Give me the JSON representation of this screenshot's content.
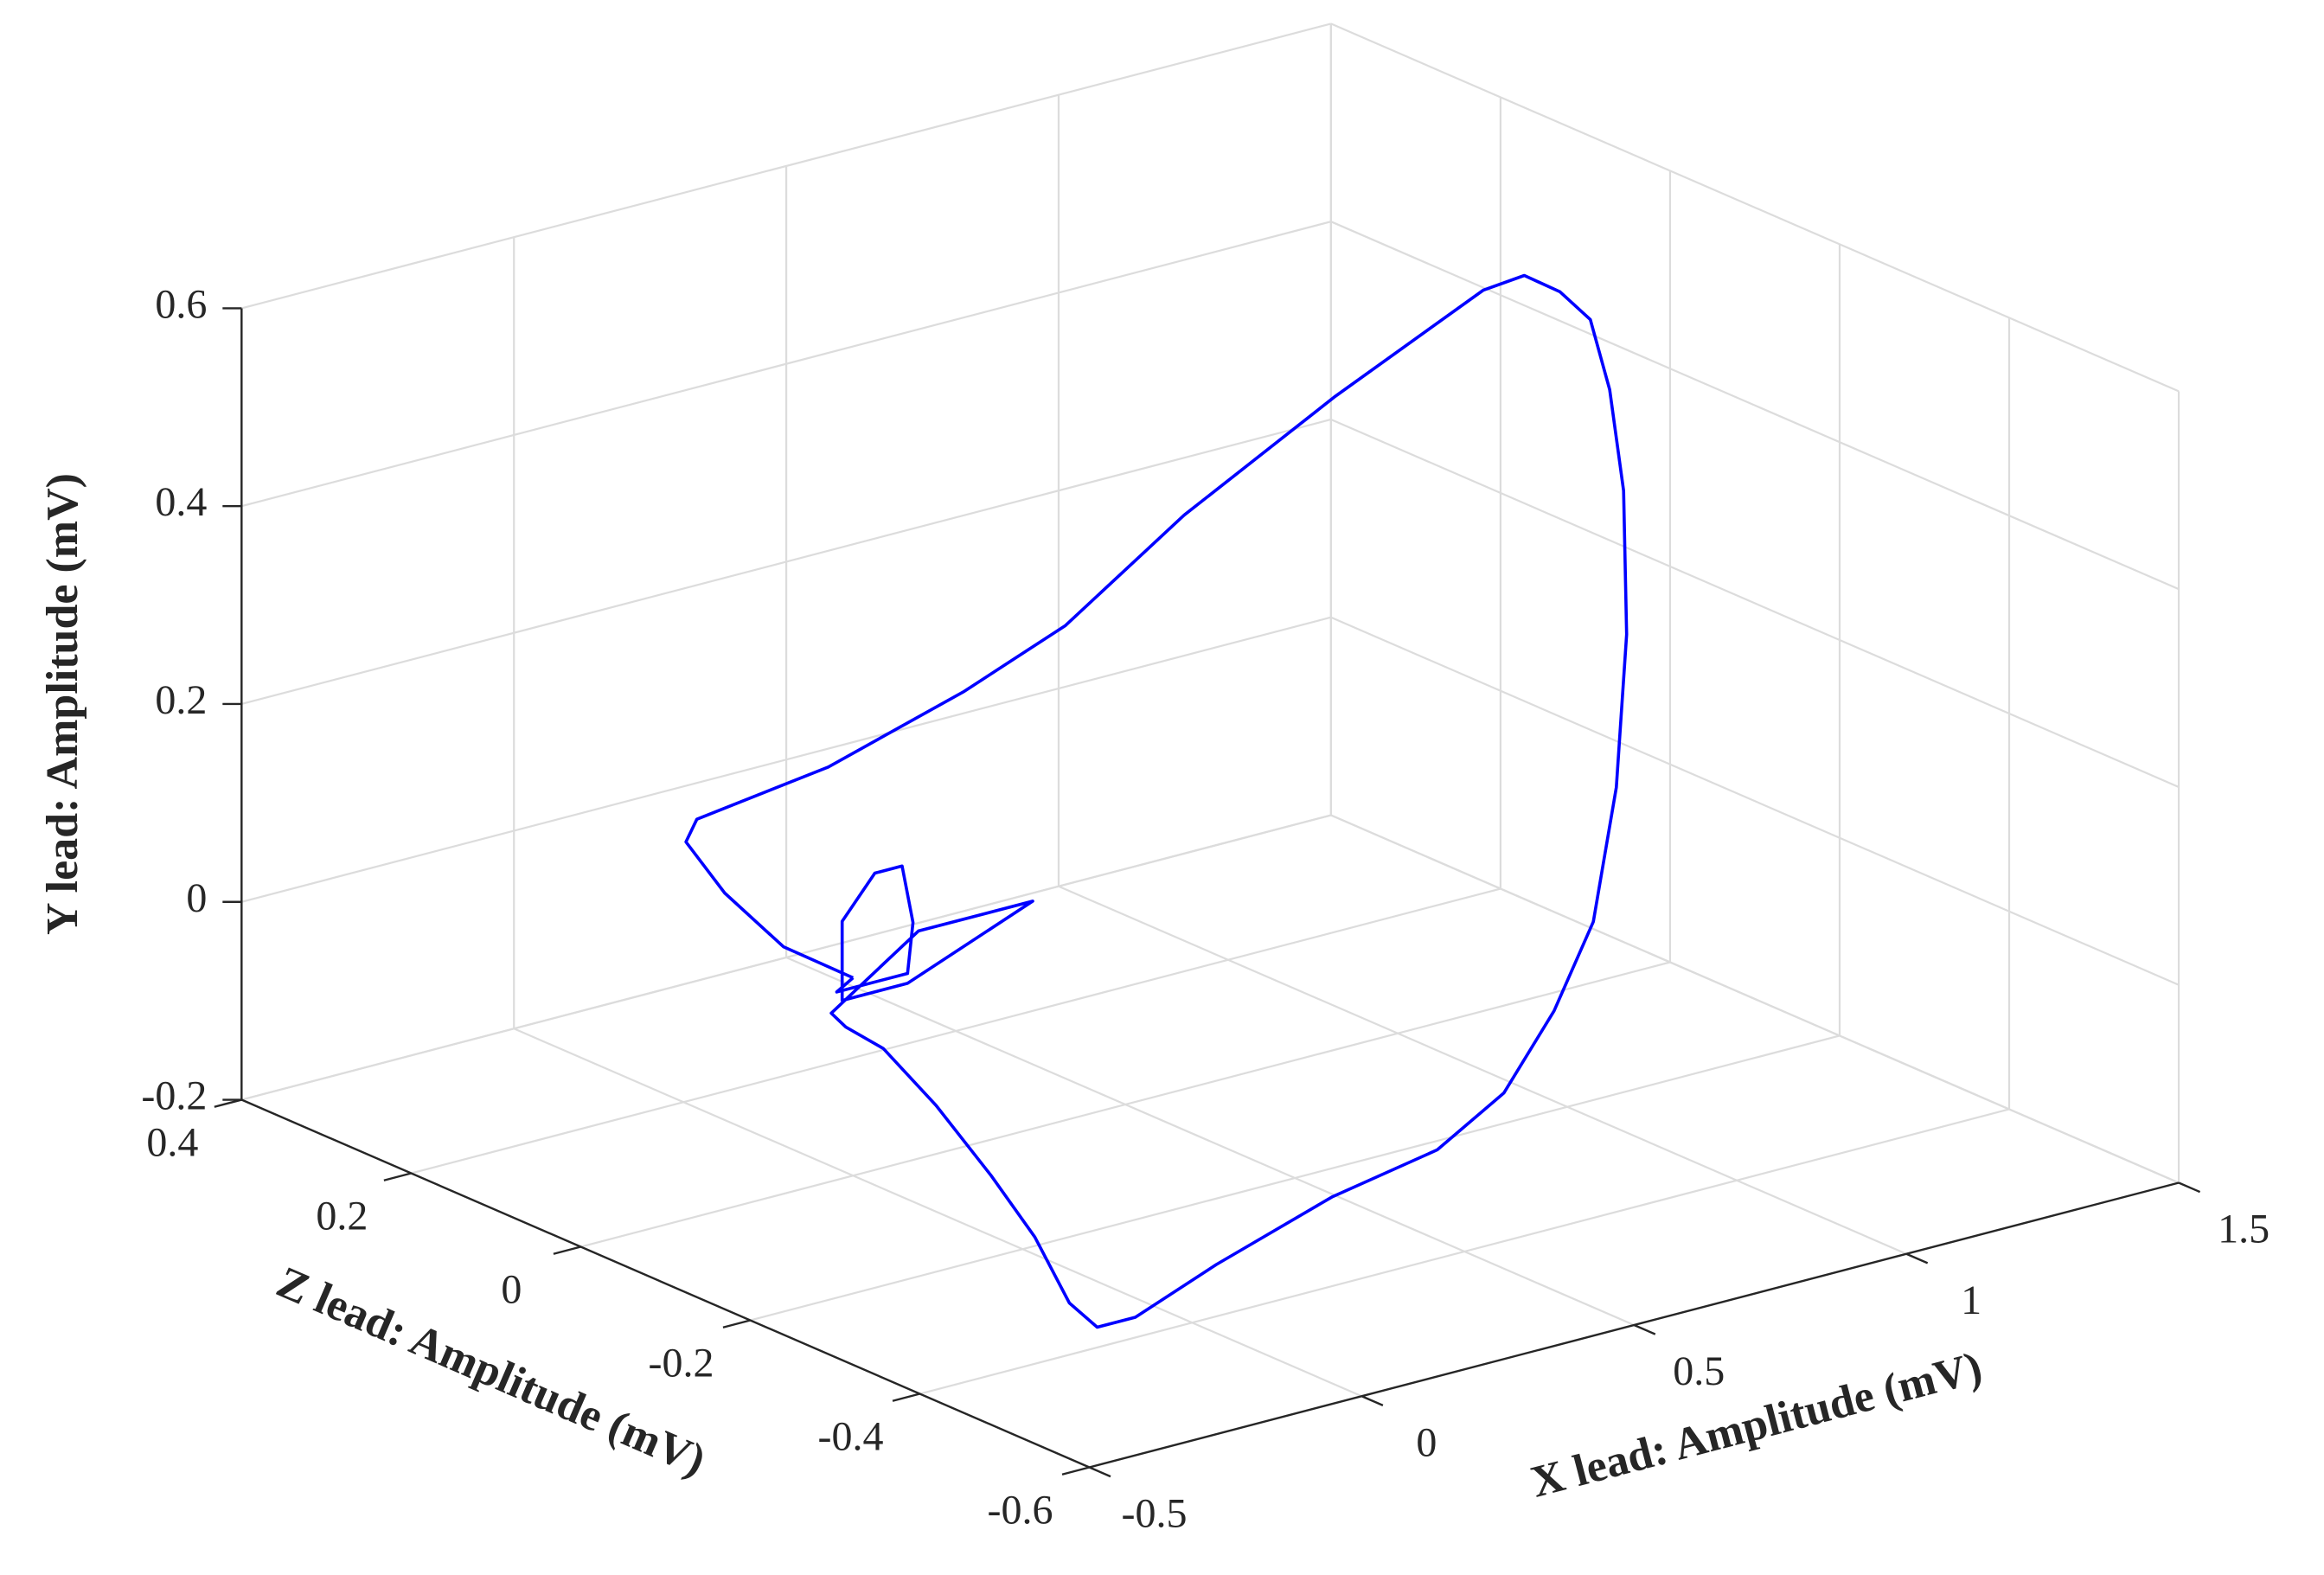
{
  "chart_data": {
    "type": "line3d",
    "xlabel": "X lead: Amplitude (mV)",
    "ylabel": "Y lead: Amplitude (mV)",
    "zlabel": "Z lead: Amplitude (mV)",
    "color": "#0000ff",
    "grid": true,
    "xlim": [
      -0.5,
      1.5
    ],
    "xticks": [
      -0.5,
      0,
      0.5,
      1,
      1.5
    ],
    "ylim": [
      -0.2,
      0.6
    ],
    "yticks": [
      -0.2,
      0,
      0.2,
      0.4,
      0.6
    ],
    "zlim": [
      -0.6,
      0.4
    ],
    "zticks": [
      -0.6,
      -0.4,
      -0.2,
      0,
      0.2,
      0.4
    ],
    "x": [
      0,
      -0.05,
      -0.08,
      -0.12,
      -0.1,
      0.11,
      0.28,
      0.39,
      0.53,
      0.73,
      0.97,
      1.03,
      1.08,
      1.12,
      1.14,
      1.15,
      1.14,
      1.09,
      0.97,
      0.82,
      0.65,
      0.45,
      0.18,
      -0.08,
      -0.26,
      -0.33,
      -0.35,
      -0.32,
      -0.26,
      -0.19,
      -0.1,
      -0.06,
      -0.04,
      0.12,
      0.33,
      0.1,
      -0.02,
      -0.02,
      0.04,
      0.09,
      0.11,
      0.1,
      -0.03,
      0
    ],
    "y": [
      0,
      0.02,
      0.06,
      0.11,
      0.13,
      0.16,
      0.23,
      0.3,
      0.41,
      0.52,
      0.6,
      0.61,
      0.59,
      0.56,
      0.49,
      0.39,
      0.25,
      0.11,
      0.01,
      -0.04,
      -0.08,
      -0.09,
      -0.08,
      -0.1,
      -0.12,
      -0.12,
      -0.1,
      -0.06,
      -0.04,
      -0.02,
      -0.02,
      -0.03,
      -0.03,
      0.03,
      0.03,
      -0.02,
      -0.02,
      0.06,
      0.1,
      0.1,
      0.04,
      -0.01,
      -0.01,
      0
    ],
    "z": [
      0,
      0.05,
      0.1,
      0.12,
      0.12,
      0.1,
      0.05,
      0,
      -0.05,
      -0.1,
      -0.12,
      -0.13,
      -0.14,
      -0.15,
      -0.16,
      -0.17,
      -0.18,
      -0.2,
      -0.25,
      -0.3,
      -0.35,
      -0.4,
      -0.45,
      -0.48,
      -0.5,
      -0.5,
      -0.48,
      -0.42,
      -0.33,
      -0.22,
      -0.1,
      -0.03,
      0,
      0,
      0,
      0,
      0,
      0,
      0,
      0,
      0,
      0,
      0,
      0
    ]
  }
}
